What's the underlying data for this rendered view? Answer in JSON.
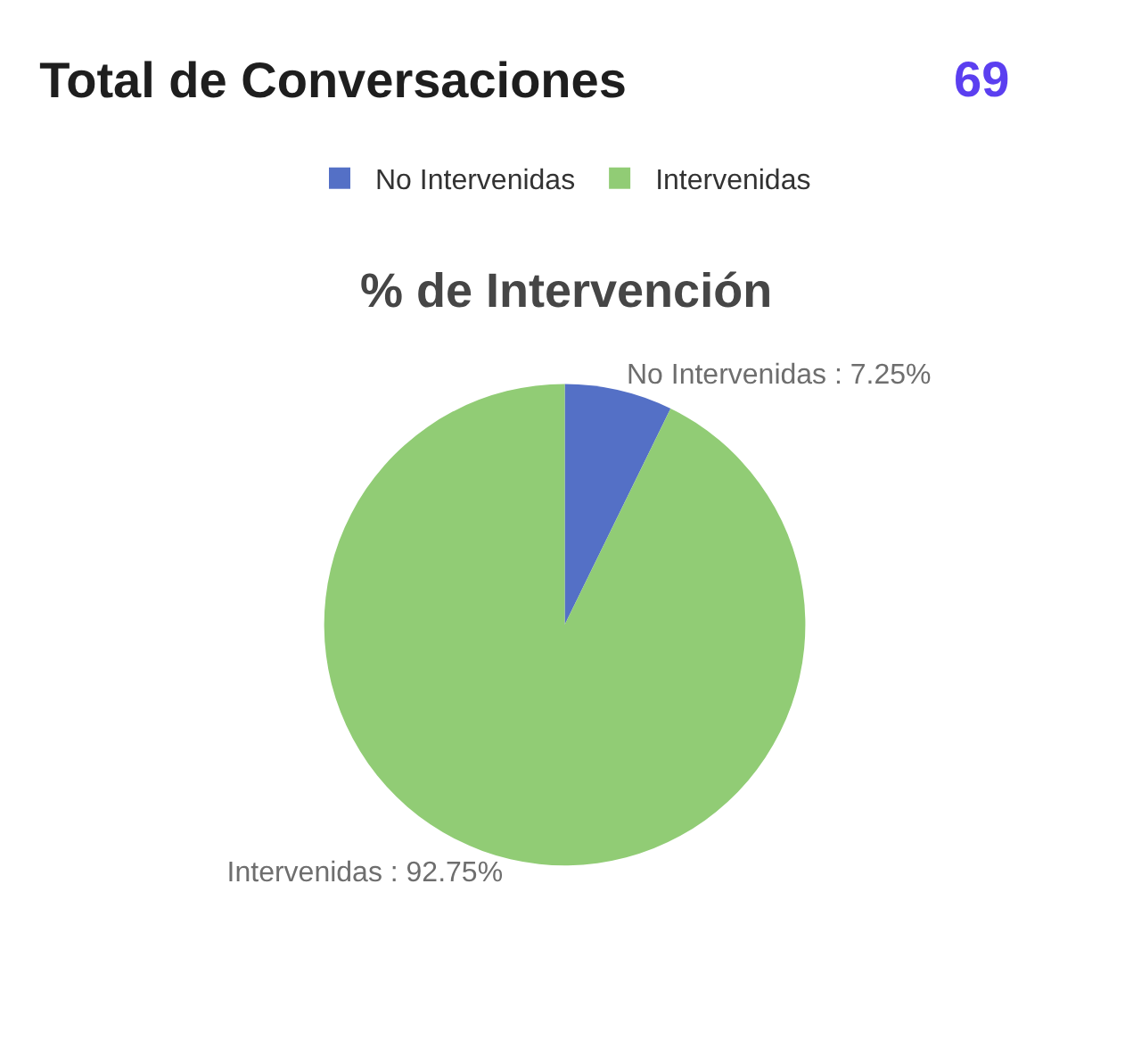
{
  "chart_data": {
    "type": "pie",
    "title": "Total de Conversaciones",
    "subtitle": "% de Intervención",
    "annotations": [
      "69"
    ],
    "categories": [
      "No Intervenidas",
      "Intervenidas"
    ],
    "values": [
      7.25,
      92.75
    ],
    "colors": [
      "#5470c6",
      "#91cc75"
    ],
    "value_labels": [
      "No Intervenidas : 7.25%",
      "Intervenidas : 92.75%"
    ],
    "legend": "top"
  }
}
